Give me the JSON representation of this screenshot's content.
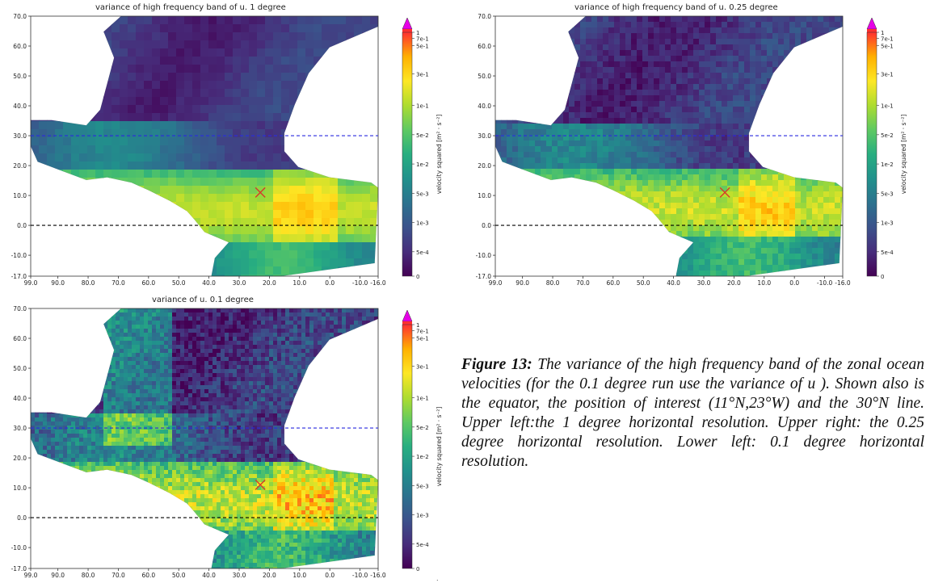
{
  "figure": {
    "caption_label": "Figure 13:",
    "caption_text": " The variance of the high frequency band of the zonal ocean velocities (for the 0.1 degree run use the variance of u ). Shown also is the equator, the position of interest (11°N,23°W) and the 30°N line. Upper left:the 1 degree horizontal resolution.  Upper right: the 0.25 degree horizontal resolution. Lower left: 0.1 degree horizontal resolution.",
    "trailing_mark": "."
  },
  "colors": {
    "equator_line": "#000000",
    "lat30_line": "#2a2adf",
    "marker": "#d63a2a",
    "colorbar_extend": "#e600e6",
    "colorbar_stops": [
      "#440154",
      "#472d7b",
      "#3b528b",
      "#2c728e",
      "#21918c",
      "#28ae80",
      "#5ec962",
      "#addc30",
      "#fde725",
      "#ffb000",
      "#ff3030"
    ],
    "land_background": "#ffffff"
  },
  "panels": [
    {
      "id": "p1",
      "title": "variance of high frequency band of u. 1 degree",
      "colorbar_label": "velocity squared [m² · s⁻²]",
      "colorbar_ticks": [
        "1",
        "7e-1",
        "5e-1",
        "3e-1",
        "1e-1",
        "5e-2",
        "1e-2",
        "5e-3",
        "1e-3",
        "5e-4",
        "0"
      ],
      "y_ticks": [
        "70.0",
        "60.0",
        "50.0",
        "40.0",
        "30.0",
        "20.0",
        "10.0",
        "0.0",
        "-10.0",
        "-17.0"
      ],
      "x_ticks": [
        "99.0",
        "90.0",
        "80.0",
        "70.0",
        "60.0",
        "50.0",
        "40.0",
        "30.0",
        "20.0",
        "10.0",
        "0.0",
        "-10.0",
        "-16.0"
      ]
    },
    {
      "id": "p2",
      "title": "variance of high frequency band of u. 0.25 degree",
      "colorbar_label": "velocity squared [m² · s⁻²]",
      "colorbar_ticks": [
        "1",
        "7e-1",
        "5e-1",
        "3e-1",
        "1e-1",
        "5e-2",
        "1e-2",
        "5e-3",
        "1e-3",
        "5e-4",
        "0"
      ],
      "y_ticks": [
        "70.0",
        "60.0",
        "50.0",
        "40.0",
        "30.0",
        "20.0",
        "10.0",
        "0.0",
        "-10.0",
        "-17.0"
      ],
      "x_ticks": [
        "99.0",
        "90.0",
        "80.0",
        "70.0",
        "60.0",
        "50.0",
        "40.0",
        "30.0",
        "20.0",
        "10.0",
        "0.0",
        "-10.0",
        "-16.0"
      ]
    },
    {
      "id": "p3",
      "title": "variance of u. 0.1 degree",
      "colorbar_label": "velocity squared [m² · s⁻²]",
      "colorbar_ticks": [
        "1",
        "7e-1",
        "5e-1",
        "3e-1",
        "1e-1",
        "5e-2",
        "1e-2",
        "5e-3",
        "1e-3",
        "5e-4",
        "0"
      ],
      "y_ticks": [
        "70.0",
        "60.0",
        "50.0",
        "40.0",
        "30.0",
        "20.0",
        "10.0",
        "0.0",
        "-10.0",
        "-17.0"
      ],
      "x_ticks": [
        "99.0",
        "90.0",
        "80.0",
        "70.0",
        "60.0",
        "50.0",
        "40.0",
        "30.0",
        "20.0",
        "10.0",
        "0.0",
        "-10.0",
        "-16.0"
      ]
    }
  ],
  "chart_data": [
    {
      "type": "heatmap",
      "title": "variance of high frequency band of u. 1 degree",
      "xlim": [
        99,
        -16
      ],
      "ylim": [
        -17,
        70
      ],
      "colorbar_label": "velocity squared [m² · s⁻²]",
      "reference_lines": [
        {
          "lat": 30,
          "style": "dashed"
        },
        {
          "lat": 0,
          "style": "dashed"
        }
      ],
      "marker": {
        "lat": 11,
        "lon": 23,
        "symbol": "x"
      }
    },
    {
      "type": "heatmap",
      "title": "variance of high frequency band of u. 0.25 degree",
      "xlim": [
        99,
        -16
      ],
      "ylim": [
        -17,
        70
      ],
      "colorbar_label": "velocity squared [m² · s⁻²]",
      "reference_lines": [
        {
          "lat": 30,
          "style": "dashed"
        },
        {
          "lat": 0,
          "style": "dashed"
        }
      ],
      "marker": {
        "lat": 11,
        "lon": 23,
        "symbol": "x"
      }
    },
    {
      "type": "heatmap",
      "title": "variance of u. 0.1 degree",
      "xlim": [
        99,
        -16
      ],
      "ylim": [
        -17,
        70
      ],
      "colorbar_label": "velocity squared [m² · s⁻²]",
      "reference_lines": [
        {
          "lat": 30,
          "style": "dashed"
        },
        {
          "lat": 0,
          "style": "dashed"
        }
      ],
      "marker": {
        "lat": 11,
        "lon": 23,
        "symbol": "x"
      }
    }
  ]
}
